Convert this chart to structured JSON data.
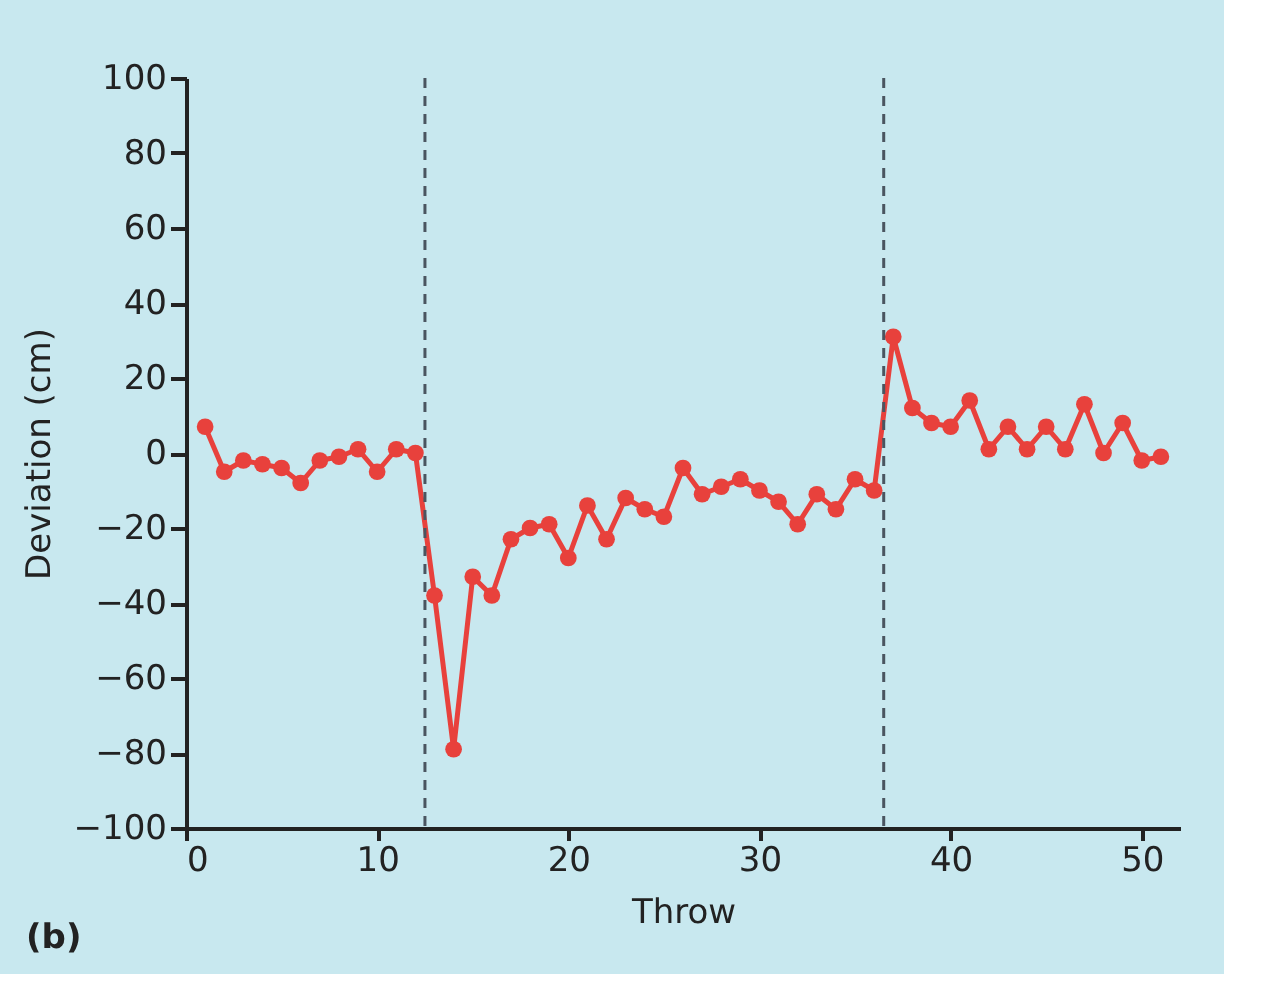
{
  "chart_data": {
    "type": "line",
    "xlabel": "Throw",
    "ylabel": "Deviation (cm)",
    "annotations": [
      "(b)"
    ],
    "x": [
      1,
      2,
      3,
      4,
      5,
      6,
      7,
      8,
      9,
      10,
      11,
      12,
      13,
      14,
      15,
      16,
      17,
      18,
      19,
      20,
      21,
      22,
      23,
      24,
      25,
      26,
      27,
      28,
      29,
      30,
      31,
      32,
      33,
      34,
      35,
      36,
      37,
      38,
      39,
      40,
      41,
      42,
      43,
      44,
      45,
      46,
      47,
      48,
      49,
      50,
      51
    ],
    "series": [
      {
        "color": "#e8413c",
        "values": [
          7,
          -5,
          -2,
          -3,
          -4,
          -8,
          -2,
          -1,
          1,
          -5,
          1,
          0,
          -38,
          -79,
          -33,
          -38,
          -23,
          -20,
          -19,
          -28,
          -14,
          -23,
          -12,
          -15,
          -17,
          -4,
          -11,
          -9,
          -7,
          -10,
          -13,
          -19,
          -11,
          -15,
          -7,
          -10,
          31,
          12,
          8,
          7,
          14,
          1,
          7,
          1,
          7,
          1,
          13,
          0,
          8,
          -2,
          -1
        ]
      }
    ],
    "xlim": [
      0,
      52
    ],
    "xticks": [
      0,
      10,
      20,
      30,
      40,
      50
    ],
    "ylim": [
      -100,
      100
    ],
    "yticks": [
      -100,
      -80,
      -60,
      -40,
      -20,
      0,
      20,
      40,
      60,
      80,
      100
    ],
    "ref_lines": [
      {
        "axis": "x",
        "value": 12.5,
        "color": "#4a5560",
        "line_style": "dashed"
      },
      {
        "axis": "x",
        "value": 36.5,
        "color": "#4a5560",
        "line_style": "dashed"
      }
    ],
    "marker": "circle",
    "line_style": "solid",
    "grid": false
  }
}
